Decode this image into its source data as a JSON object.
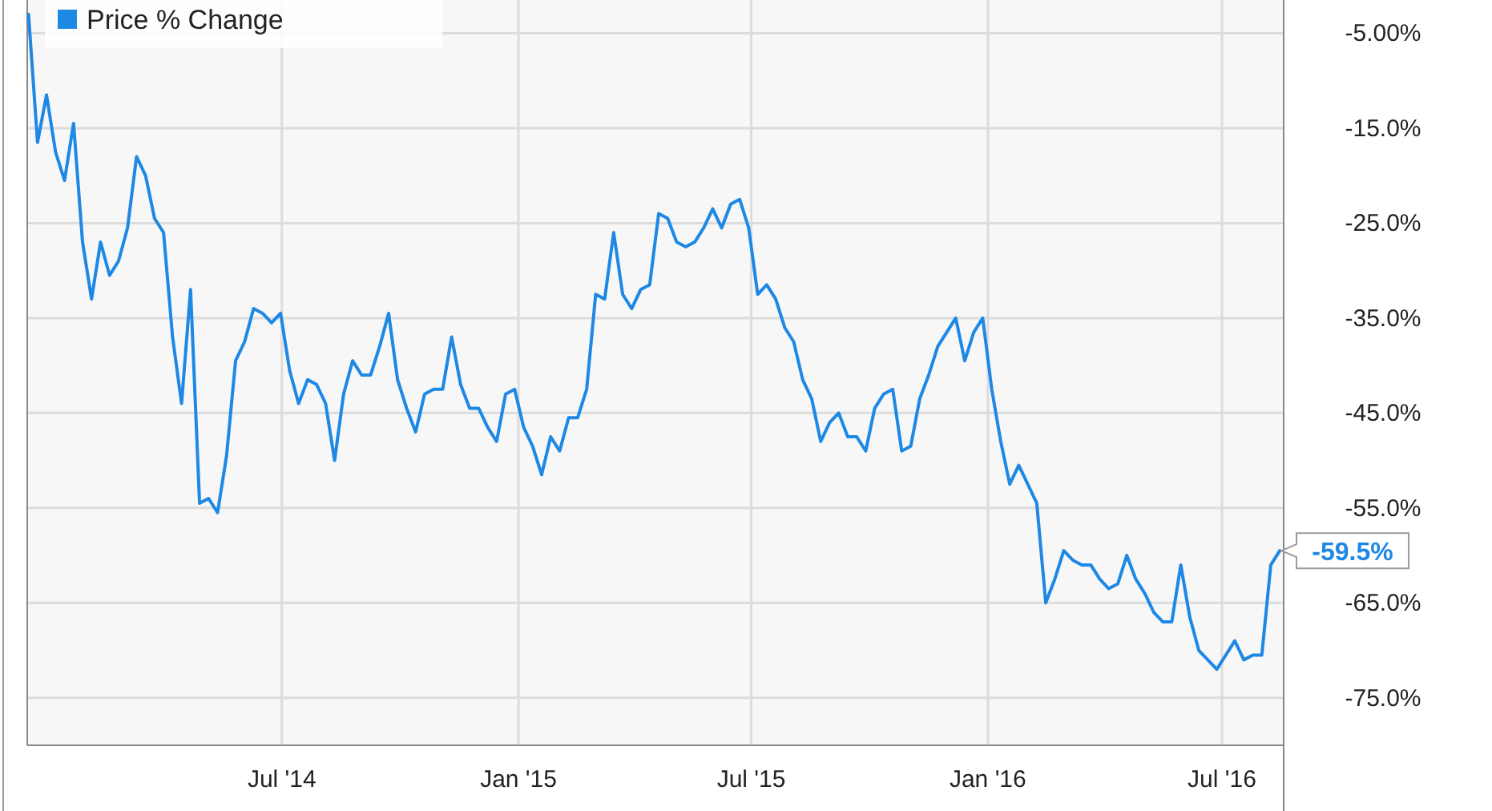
{
  "chart_data": {
    "type": "line",
    "x": [
      "2013-12-16",
      "2013-12-23",
      "2013-12-30",
      "2014-01-06",
      "2014-01-13",
      "2014-01-20",
      "2014-01-27",
      "2014-02-03",
      "2014-02-10",
      "2014-02-17",
      "2014-02-24",
      "2014-03-03",
      "2014-03-10",
      "2014-03-17",
      "2014-03-24",
      "2014-03-31",
      "2014-04-07",
      "2014-04-14",
      "2014-04-21",
      "2014-04-28",
      "2014-05-05",
      "2014-05-12",
      "2014-05-19",
      "2014-05-26",
      "2014-06-02",
      "2014-06-09",
      "2014-06-16",
      "2014-06-23",
      "2014-06-30",
      "2014-07-07",
      "2014-07-14",
      "2014-07-21",
      "2014-07-28",
      "2014-08-04",
      "2014-08-11",
      "2014-08-18",
      "2014-08-25",
      "2014-09-01",
      "2014-09-08",
      "2014-09-15",
      "2014-09-22",
      "2014-09-29",
      "2014-10-06",
      "2014-10-13",
      "2014-10-20",
      "2014-10-27",
      "2014-11-03",
      "2014-11-10",
      "2014-11-17",
      "2014-11-24",
      "2014-12-01",
      "2014-12-08",
      "2014-12-15",
      "2014-12-22",
      "2014-12-29",
      "2015-01-05",
      "2015-01-12",
      "2015-01-19",
      "2015-01-26",
      "2015-02-02",
      "2015-02-09",
      "2015-02-16",
      "2015-02-23",
      "2015-03-02",
      "2015-03-09",
      "2015-03-16",
      "2015-03-23",
      "2015-03-30",
      "2015-04-06",
      "2015-04-13",
      "2015-04-20",
      "2015-04-27",
      "2015-05-04",
      "2015-05-11",
      "2015-05-18",
      "2015-05-25",
      "2015-06-01",
      "2015-06-08",
      "2015-06-15",
      "2015-06-22",
      "2015-06-29",
      "2015-07-06",
      "2015-07-13",
      "2015-07-20",
      "2015-07-27",
      "2015-08-03",
      "2015-08-10",
      "2015-08-17",
      "2015-08-24",
      "2015-08-31",
      "2015-09-07",
      "2015-09-14",
      "2015-09-21",
      "2015-09-28",
      "2015-10-05",
      "2015-10-12",
      "2015-10-19",
      "2015-10-26",
      "2015-11-02",
      "2015-11-09",
      "2015-11-16",
      "2015-11-23",
      "2015-11-30",
      "2015-12-07",
      "2015-12-14",
      "2015-12-21",
      "2015-12-28",
      "2016-01-04",
      "2016-01-11",
      "2016-01-18",
      "2016-01-25",
      "2016-02-01",
      "2016-02-08",
      "2016-02-15",
      "2016-02-22",
      "2016-02-29",
      "2016-03-07",
      "2016-03-14",
      "2016-03-21",
      "2016-03-28",
      "2016-04-04",
      "2016-04-11",
      "2016-04-18",
      "2016-04-25",
      "2016-05-02",
      "2016-05-09",
      "2016-05-16",
      "2016-05-23",
      "2016-05-30",
      "2016-06-06",
      "2016-06-13",
      "2016-06-20",
      "2016-06-27",
      "2016-07-04",
      "2016-07-11",
      "2016-07-18",
      "2016-07-25",
      "2016-08-01",
      "2016-08-08",
      "2016-08-15"
    ],
    "series": [
      {
        "name": "Price % Change",
        "color": "#1e88e5",
        "values": [
          -3,
          -16.5,
          -11.5,
          -17.5,
          -20.5,
          -14.5,
          -27,
          -33,
          -27,
          -30.5,
          -29,
          -25.5,
          -18,
          -20,
          -24.5,
          -26,
          -37,
          -44,
          -32,
          -54.5,
          -54,
          -55.5,
          -49.5,
          -39.5,
          -37.5,
          -34,
          -34.5,
          -35.5,
          -34.5,
          -40.5,
          -44,
          -41.5,
          -42,
          -44,
          -50,
          -43,
          -39.5,
          -41,
          -41,
          -38,
          -34.5,
          -41.5,
          -44.5,
          -47,
          -43,
          -42.5,
          -42.5,
          -37,
          -42,
          -44.5,
          -44.5,
          -46.5,
          -48,
          -43,
          -42.5,
          -46.5,
          -48.5,
          -51.5,
          -47.5,
          -49,
          -45.5,
          -45.5,
          -42.5,
          -32.5,
          -33,
          -26,
          -32.5,
          -34,
          -32,
          -31.5,
          -24,
          -24.5,
          -27,
          -27.5,
          -27,
          -25.5,
          -23.5,
          -25.5,
          -23,
          -22.5,
          -25.5,
          -32.5,
          -31.5,
          -33,
          -36,
          -37.5,
          -41.5,
          -43.5,
          -48,
          -46,
          -45,
          -47.5,
          -47.5,
          -49,
          -44.5,
          -43,
          -42.5,
          -49,
          -48.5,
          -43.5,
          -41,
          -38,
          -36.5,
          -35,
          -39.5,
          -36.5,
          -35,
          -42.5,
          -48,
          -52.5,
          -50.5,
          -52.5,
          -54.5,
          -65,
          -62.5,
          -59.5,
          -60.5,
          -61,
          -61,
          -62.5,
          -63.5,
          -63,
          -60,
          -62.5,
          -64,
          -66,
          -67,
          -67,
          -61,
          -66.5,
          -70,
          -71,
          -72,
          -70.5,
          -69,
          -71,
          -70.5,
          -70.5,
          -61,
          -59.5
        ]
      }
    ],
    "xlim": [
      "2013-12-15",
      "2016-08-18"
    ],
    "xticks": [
      {
        "value": "2014-07-01",
        "label": "Jul '14"
      },
      {
        "value": "2015-01-01",
        "label": "Jan '15"
      },
      {
        "value": "2015-07-01",
        "label": "Jul '15"
      },
      {
        "value": "2016-01-01",
        "label": "Jan '16"
      },
      {
        "value": "2016-07-01",
        "label": "Jul '16"
      }
    ],
    "ylim": [
      -80,
      -1.5
    ],
    "yticks": [
      {
        "value": -5,
        "label": "-5.00%"
      },
      {
        "value": -15,
        "label": "-15.0%"
      },
      {
        "value": -25,
        "label": "-25.0%"
      },
      {
        "value": -35,
        "label": "-35.0%"
      },
      {
        "value": -45,
        "label": "-45.0%"
      },
      {
        "value": -55,
        "label": "-55.0%"
      },
      {
        "value": -65,
        "label": "-65.0%"
      },
      {
        "value": -75,
        "label": "-75.0%"
      }
    ],
    "annotations": [
      {
        "text": "-59.5%",
        "x": "2016-08-15",
        "y": -59.5
      }
    ],
    "grid": true,
    "legend": "top left",
    "marker": "none",
    "line_style": "solid"
  }
}
